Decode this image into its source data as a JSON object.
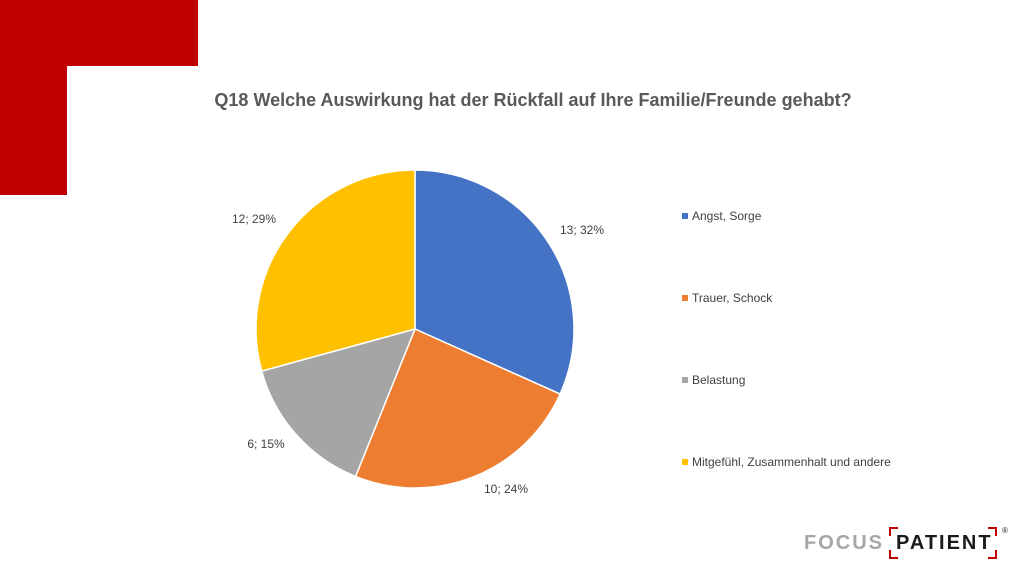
{
  "chart_data": {
    "type": "pie",
    "title": "Q18 Welche Auswirkung hat der Rückfall auf Ihre Familie/Freunde gehabt?",
    "categories": [
      "Angst, Sorge",
      "Trauer, Schock",
      "Belastung",
      "Mitgefühl, Zusammenhalt und andere"
    ],
    "values": [
      13,
      10,
      6,
      12
    ],
    "percent": [
      32,
      24,
      15,
      29
    ],
    "data_labels": [
      "13; 32%",
      "10; 24%",
      "6; 15%",
      "12; 29%"
    ],
    "colors": [
      "#4472C4",
      "#ED7D31",
      "#A5A5A5",
      "#FFC000"
    ],
    "legend_position": "right"
  },
  "logo": {
    "focus": "FOCUS",
    "patient": "PATIENT",
    "reg": "®"
  },
  "decoration_color": "#C00000"
}
